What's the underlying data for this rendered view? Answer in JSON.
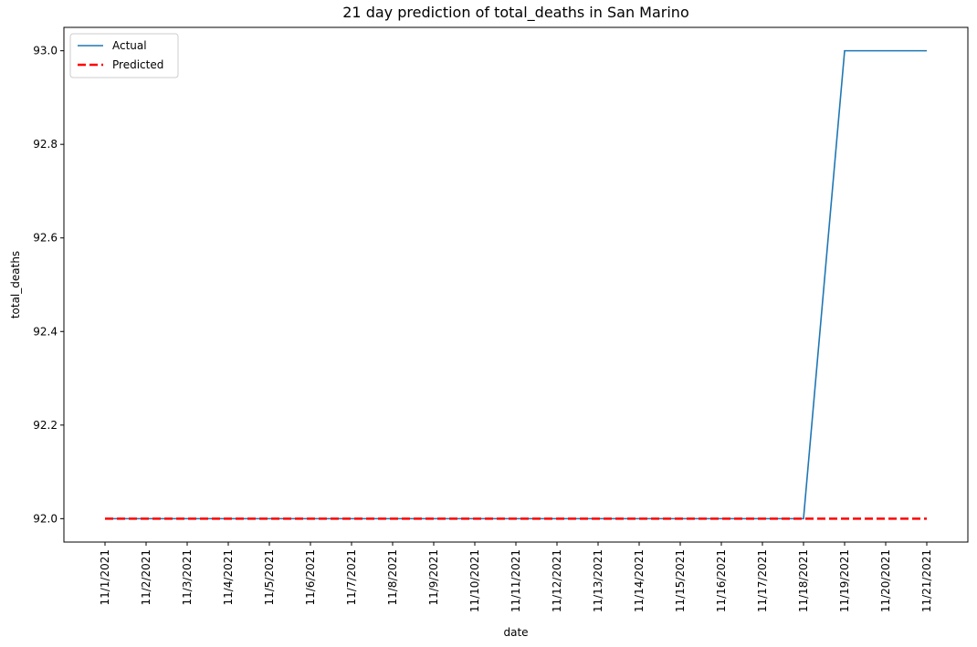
{
  "chart_data": {
    "type": "line",
    "title": "21 day prediction of total_deaths in San Marino",
    "xlabel": "date",
    "ylabel": "total_deaths",
    "x": [
      "11/1/2021",
      "11/2/2021",
      "11/3/2021",
      "11/4/2021",
      "11/5/2021",
      "11/6/2021",
      "11/7/2021",
      "11/8/2021",
      "11/9/2021",
      "11/10/2021",
      "11/11/2021",
      "11/12/2021",
      "11/13/2021",
      "11/14/2021",
      "11/15/2021",
      "11/16/2021",
      "11/17/2021",
      "11/18/2021",
      "11/19/2021",
      "11/20/2021",
      "11/21/2021"
    ],
    "series": [
      {
        "name": "Actual",
        "color": "#1f77b4",
        "style": "solid",
        "values": [
          92,
          92,
          92,
          92,
          92,
          92,
          92,
          92,
          92,
          92,
          92,
          92,
          92,
          92,
          92,
          92,
          92,
          92,
          93,
          93,
          93
        ]
      },
      {
        "name": "Predicted",
        "color": "#ff0000",
        "style": "dashed",
        "values": [
          92,
          92,
          92,
          92,
          92,
          92,
          92,
          92,
          92,
          92,
          92,
          92,
          92,
          92,
          92,
          92,
          92,
          92,
          92,
          92,
          92
        ]
      }
    ],
    "ylim": [
      91.95,
      93.05
    ],
    "yticks": [
      "92.0",
      "92.2",
      "92.4",
      "92.6",
      "92.8",
      "93.0"
    ],
    "grid": false,
    "legend_position": "top-left"
  }
}
